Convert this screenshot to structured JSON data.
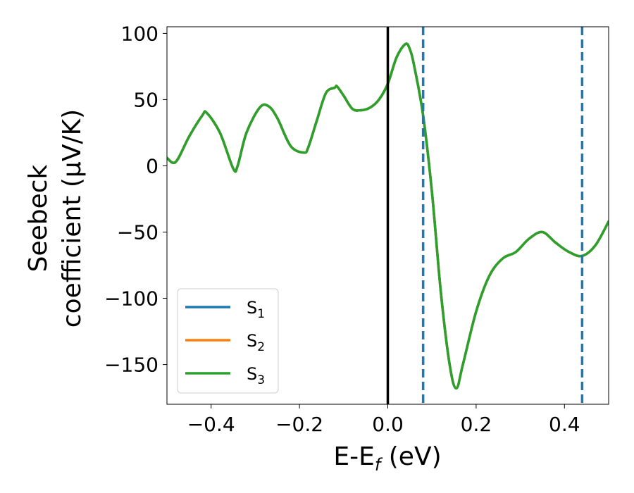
{
  "chart_data": {
    "type": "line",
    "xlabel_main": "E-E",
    "xlabel_sub": "f",
    "xlabel_unit": " (eV)",
    "ylabel_line1": "Seebeck",
    "ylabel_line2": "coefficient  (μV/K)",
    "xlim": [
      -0.5,
      0.5
    ],
    "ylim": [
      -180,
      105
    ],
    "xticks": [
      -0.4,
      -0.2,
      0.0,
      0.2,
      0.4
    ],
    "xtick_labels": [
      "−0.4",
      "−0.2",
      "0.0",
      "0.2",
      "0.4"
    ],
    "yticks": [
      100,
      50,
      0,
      -50,
      -100,
      -150
    ],
    "ytick_labels": [
      "100",
      "50",
      "0",
      "−50",
      "−100",
      "−150"
    ],
    "grid": false,
    "legend_position": "lower-left",
    "vlines": [
      {
        "x": 0.0,
        "color": "#000000",
        "style": "solid"
      },
      {
        "x": 0.08,
        "color": "#1f77b4",
        "style": "dashed"
      },
      {
        "x": 0.44,
        "color": "#1f77b4",
        "style": "dashed"
      }
    ],
    "x": [
      -0.5,
      -0.48,
      -0.45,
      -0.42,
      -0.41,
      -0.38,
      -0.35,
      -0.34,
      -0.32,
      -0.29,
      -0.27,
      -0.25,
      -0.22,
      -0.19,
      -0.18,
      -0.16,
      -0.14,
      -0.12,
      -0.115,
      -0.1,
      -0.08,
      -0.06,
      -0.04,
      -0.02,
      0.0,
      0.02,
      0.04,
      0.05,
      0.06,
      0.08,
      0.1,
      0.12,
      0.14,
      0.155,
      0.17,
      0.2,
      0.23,
      0.26,
      0.29,
      0.32,
      0.35,
      0.38,
      0.41,
      0.44,
      0.47,
      0.5
    ],
    "series": [
      {
        "name_main": "S",
        "name_sub": "1",
        "color": "#1f77b4",
        "values": [
          6,
          3,
          22,
          38,
          40,
          25,
          -2,
          0,
          25,
          44,
          45,
          36,
          15,
          10,
          14,
          35,
          55,
          59,
          60,
          53,
          43,
          42,
          44,
          50,
          62,
          82,
          92,
          88,
          75,
          38,
          -20,
          -95,
          -150,
          -168,
          -150,
          -110,
          -83,
          -70,
          -65,
          -55,
          -50,
          -58,
          -65,
          -68,
          -60,
          -42
        ]
      },
      {
        "name_main": "S",
        "name_sub": "2",
        "color": "#ff7f0e",
        "values": [
          6,
          3,
          22,
          38,
          40,
          25,
          -2,
          0,
          25,
          44,
          45,
          36,
          15,
          10,
          14,
          35,
          55,
          59,
          60,
          53,
          43,
          42,
          44,
          50,
          62,
          82,
          92,
          88,
          75,
          38,
          -20,
          -95,
          -150,
          -168,
          -150,
          -110,
          -83,
          -70,
          -65,
          -55,
          -50,
          -58,
          -65,
          -68,
          -60,
          -42
        ]
      },
      {
        "name_main": "S",
        "name_sub": "3",
        "color": "#2ca02c",
        "values": [
          6,
          3,
          22,
          38,
          40,
          25,
          -2,
          0,
          25,
          44,
          45,
          36,
          15,
          10,
          14,
          35,
          55,
          59,
          60,
          53,
          43,
          42,
          44,
          50,
          62,
          82,
          92,
          88,
          75,
          38,
          -20,
          -95,
          -150,
          -168,
          -150,
          -110,
          -83,
          -70,
          -65,
          -55,
          -50,
          -58,
          -65,
          -68,
          -60,
          -42
        ]
      }
    ]
  }
}
